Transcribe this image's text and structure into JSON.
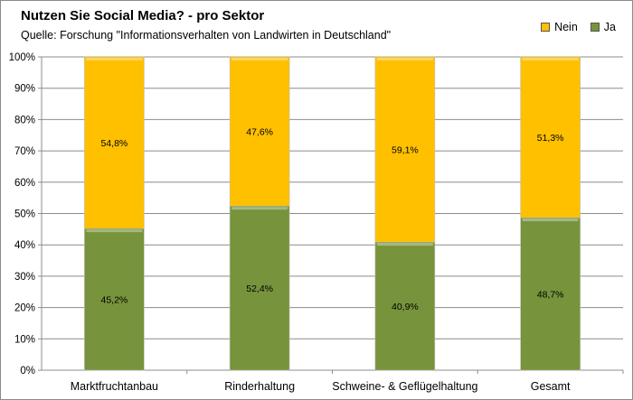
{
  "chart_data": {
    "type": "bar",
    "stacked": true,
    "title": "Nutzen Sie Social Media? - pro Sektor",
    "subtitle": "Quelle: Forschung \"Informationsverhalten von Landwirten in Deutschland\"",
    "categories": [
      "Marktfruchtanbau",
      "Rinderhaltung",
      "Schweine- & Geflügelhaltung",
      "Gesamt"
    ],
    "series": [
      {
        "name": "Ja",
        "values": [
          45.2,
          52.4,
          40.9,
          48.7
        ],
        "labels": [
          "45,2%",
          "52,4%",
          "40,9%",
          "48,7%"
        ],
        "color": "#77933c"
      },
      {
        "name": "Nein",
        "values": [
          54.8,
          47.6,
          59.1,
          51.3
        ],
        "labels": [
          "54,8%",
          "47,6%",
          "59,1%",
          "51,3%"
        ],
        "color": "#ffc000"
      }
    ],
    "legend_order": [
      "Nein",
      "Ja"
    ],
    "legend_position": "top-right",
    "ylim": [
      0,
      100
    ],
    "yticks": [
      0,
      10,
      20,
      30,
      40,
      50,
      60,
      70,
      80,
      90,
      100
    ],
    "ytick_labels": [
      "0%",
      "10%",
      "20%",
      "30%",
      "40%",
      "50%",
      "60%",
      "70%",
      "80%",
      "90%",
      "100%"
    ],
    "grid": true,
    "xlabel": "",
    "ylabel": ""
  }
}
